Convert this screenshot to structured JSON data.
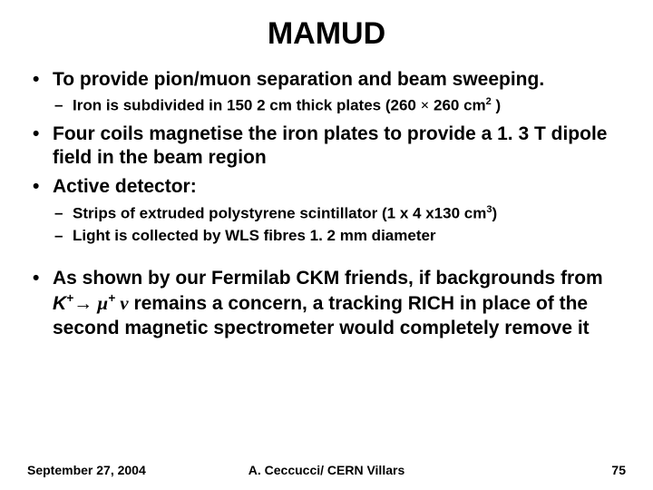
{
  "title": "MAMUD",
  "bullets": {
    "b1": "To provide pion/muon separation and beam sweeping.",
    "b1_sub1_a": "Iron is subdivided in 150 2 cm thick plates (260 ",
    "b1_sub1_b": " 260 cm",
    "b1_sub1_c": "  )",
    "b2_a": "Four coils ",
    "b2_b": "magnetise the iron plates to provide a 1. 3 T dipole field in the beam region",
    "b3": "Active detector:",
    "b3_sub1_a": "Strips of extruded polystyrene scintillator (1 x 4 x130 cm",
    "b3_sub1_b": ")",
    "b3_sub2": "Light is collected by WLS fibres 1. 2 mm diameter",
    "b4_a": "As shown by our Fermilab CKM  friends, if backgrounds from ",
    "b4_b": " remains a concern, a tracking RICH in place of the second magnetic spectrometer would completely remove it"
  },
  "math": {
    "times": "×",
    "sq": "2",
    "cube": "3",
    "kplus_a": "K",
    "kplus_sup": "+",
    "arrow": "→ ",
    "mu": "μ",
    "mu_sup": "+",
    "nu": " ν"
  },
  "footer": {
    "date": "September 27, 2004",
    "center": "A. Ceccucci/ CERN    Villars",
    "page": "75"
  }
}
